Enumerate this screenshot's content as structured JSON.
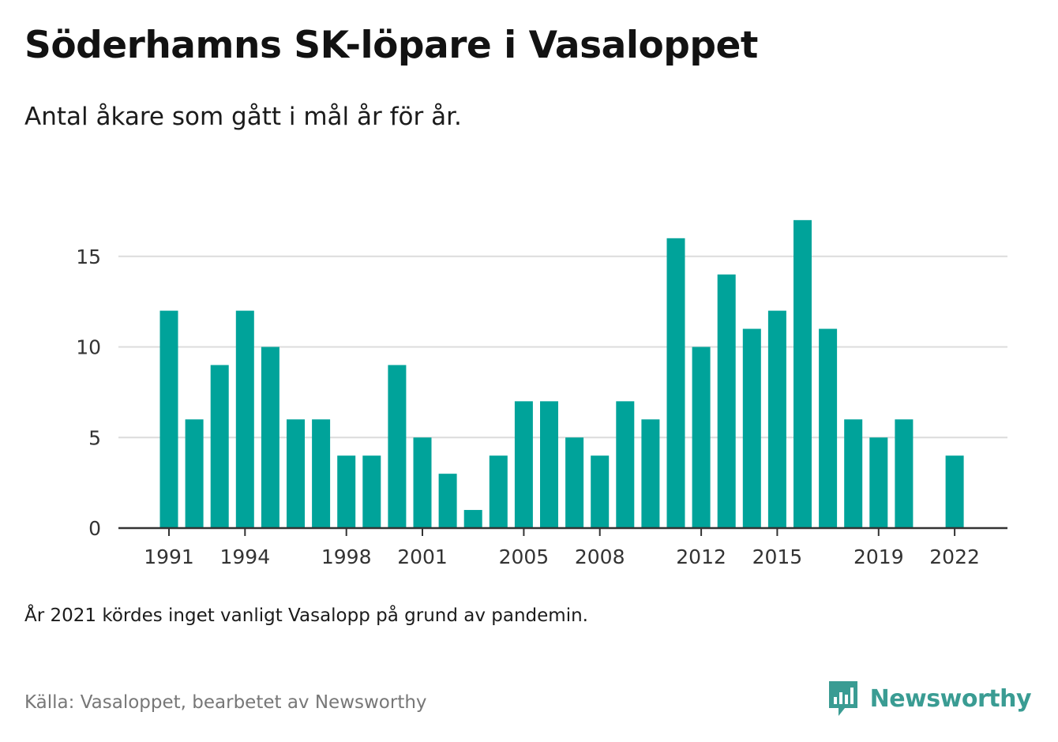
{
  "header": {
    "title": "Söderhamns SK-löpare i Vasaloppet",
    "subtitle": "Antal åkare som gått i mål år för år."
  },
  "footer": {
    "note": "År 2021 kördes inget vanligt Vasalopp på grund av pandemin.",
    "source": "Källa: Vasaloppet, bearbetet av Newsworthy",
    "brand": "Newsworthy"
  },
  "colors": {
    "bar": "#00a39a",
    "grid": "#dcdcdc",
    "axis": "#333333",
    "brand": "#3a9c93"
  },
  "icons": {
    "brand_logo": "newsworthy-logo-icon"
  },
  "chart_data": {
    "type": "bar",
    "title": "Söderhamns SK-löpare i Vasaloppet",
    "subtitle": "Antal åkare som gått i mål år för år.",
    "xlabel": "",
    "ylabel": "",
    "categories": [
      1991,
      1992,
      1993,
      1994,
      1995,
      1996,
      1997,
      1998,
      1999,
      2000,
      2001,
      2002,
      2003,
      2004,
      2005,
      2006,
      2007,
      2008,
      2009,
      2010,
      2011,
      2012,
      2013,
      2014,
      2015,
      2016,
      2017,
      2018,
      2019,
      2020,
      2021,
      2022
    ],
    "values": [
      12,
      6,
      9,
      12,
      10,
      6,
      6,
      4,
      4,
      9,
      5,
      3,
      1,
      4,
      7,
      7,
      5,
      4,
      7,
      6,
      16,
      10,
      14,
      11,
      12,
      17,
      11,
      6,
      5,
      6,
      null,
      4
    ],
    "x_tick_labels": [
      "1991",
      "1994",
      "1998",
      "2001",
      "2005",
      "2008",
      "2012",
      "2015",
      "2019",
      "2022"
    ],
    "y_ticks": [
      0,
      5,
      10,
      15
    ],
    "ylim": [
      0,
      17.5
    ],
    "grid": true,
    "legend": "none"
  }
}
